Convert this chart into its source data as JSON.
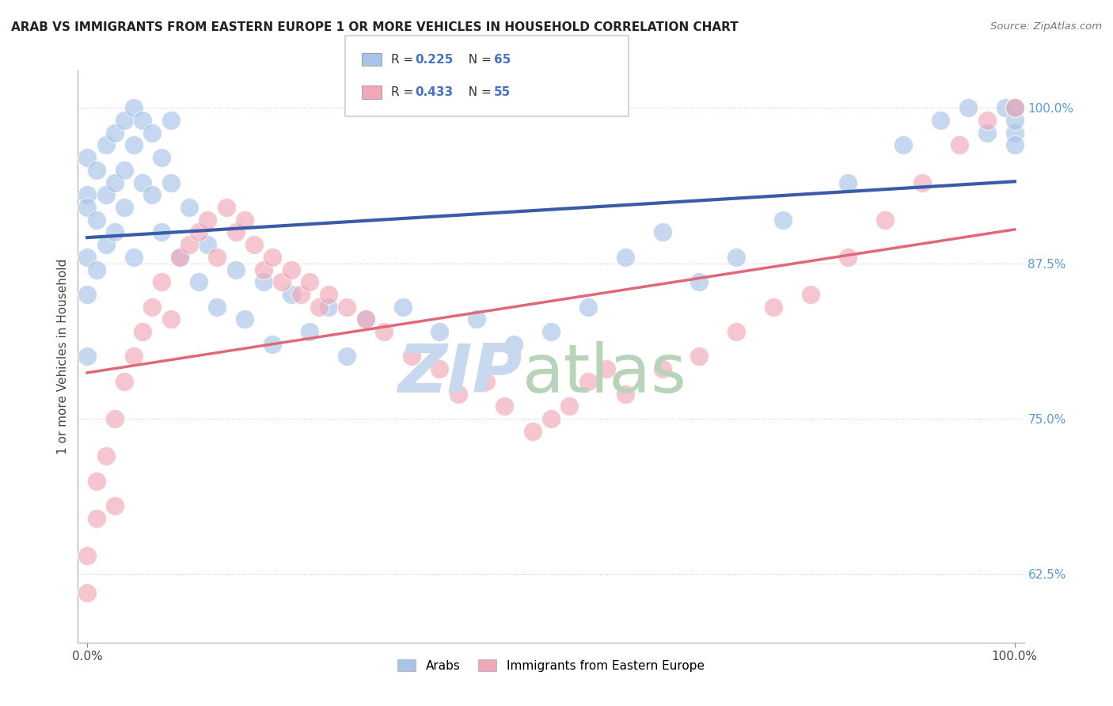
{
  "title": "ARAB VS IMMIGRANTS FROM EASTERN EUROPE 1 OR MORE VEHICLES IN HOUSEHOLD CORRELATION CHART",
  "source": "Source: ZipAtlas.com",
  "ylabel": "1 or more Vehicles in Household",
  "yticks": [
    62.5,
    75.0,
    87.5,
    100.0
  ],
  "ytick_labels": [
    "62.5%",
    "75.0%",
    "87.5%",
    "100.0%"
  ],
  "arab_color": "#a8c4e8",
  "eastern_color": "#f0a8b8",
  "arab_line_color": "#3a5ca8",
  "eastern_line_color": "#e06878",
  "background_color": "#ffffff",
  "watermark_zip_color": "#c8d8ee",
  "watermark_atlas_color": "#b8d4b8",
  "legend_R_color": "#4472c4",
  "legend_N_color": "#4472c4",
  "arab_x": [
    0,
    0,
    0,
    0,
    0,
    0,
    1,
    1,
    1,
    2,
    2,
    2,
    3,
    3,
    3,
    4,
    4,
    4,
    5,
    5,
    5,
    6,
    6,
    7,
    7,
    8,
    8,
    9,
    9,
    10,
    11,
    12,
    13,
    14,
    16,
    17,
    19,
    20,
    22,
    24,
    26,
    28,
    30,
    34,
    38,
    42,
    46,
    50,
    54,
    58,
    62,
    66,
    70,
    75,
    82,
    88,
    92,
    95,
    97,
    99,
    100,
    100,
    100,
    100,
    100
  ],
  "arab_y": [
    93,
    96,
    92,
    88,
    85,
    80,
    95,
    91,
    87,
    97,
    93,
    89,
    98,
    94,
    90,
    99,
    95,
    92,
    100,
    97,
    88,
    99,
    94,
    98,
    93,
    96,
    90,
    99,
    94,
    88,
    92,
    86,
    89,
    84,
    87,
    83,
    86,
    81,
    85,
    82,
    84,
    80,
    83,
    84,
    82,
    83,
    81,
    82,
    84,
    88,
    90,
    86,
    88,
    91,
    94,
    97,
    99,
    100,
    98,
    100,
    98,
    97,
    99,
    100,
    100
  ],
  "eastern_x": [
    0,
    0,
    1,
    1,
    2,
    3,
    3,
    4,
    5,
    6,
    7,
    8,
    9,
    10,
    11,
    12,
    13,
    14,
    15,
    16,
    17,
    18,
    19,
    20,
    21,
    22,
    23,
    24,
    25,
    26,
    28,
    30,
    32,
    35,
    38,
    40,
    43,
    45,
    48,
    50,
    52,
    54,
    56,
    58,
    62,
    66,
    70,
    74,
    78,
    82,
    86,
    90,
    94,
    97,
    100
  ],
  "eastern_y": [
    61,
    64,
    67,
    70,
    72,
    75,
    68,
    78,
    80,
    82,
    84,
    86,
    83,
    88,
    89,
    90,
    91,
    88,
    92,
    90,
    91,
    89,
    87,
    88,
    86,
    87,
    85,
    86,
    84,
    85,
    84,
    83,
    82,
    80,
    79,
    77,
    78,
    76,
    74,
    75,
    76,
    78,
    79,
    77,
    79,
    80,
    82,
    84,
    85,
    88,
    91,
    94,
    97,
    99,
    100
  ]
}
